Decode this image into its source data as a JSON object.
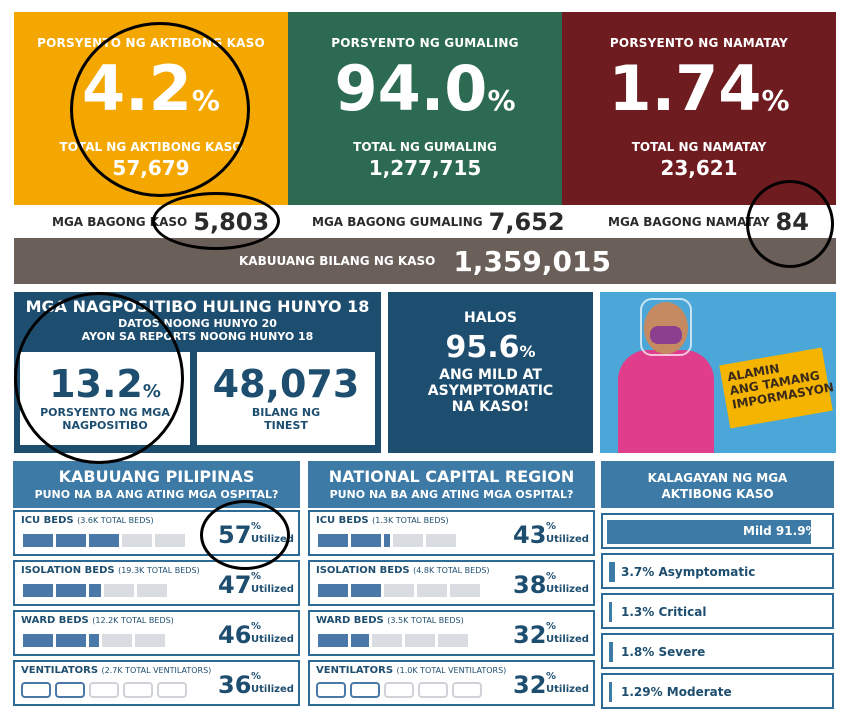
{
  "cards": [
    {
      "title": "PORSYENTO NG AKTIBONG KASO",
      "value": "4.2",
      "pct": "%",
      "sub_label": "TOTAL NG AKTIBONG KASO",
      "sub_value": "57,679",
      "color": "#f4a700"
    },
    {
      "title": "PORSYENTO NG GUMALING",
      "value": "94.0",
      "pct": "%",
      "sub_label": "TOTAL NG GUMALING",
      "sub_value": "1,277,715",
      "color": "#2d6a52"
    },
    {
      "title": "PORSYENTO NG NAMATAY",
      "value": "1.74",
      "pct": "%",
      "sub_label": "TOTAL NG NAMATAY",
      "sub_value": "23,621",
      "color": "#6e1c1f"
    }
  ],
  "new_cases": [
    {
      "label": "MGA BAGONG KASO",
      "value": "5,803"
    },
    {
      "label": "MGA BAGONG GUMALING",
      "value": "7,652"
    },
    {
      "label": "MGA BAGONG NAMATAY",
      "value": "84"
    }
  ],
  "total": {
    "label": "KABUUANG BILANG NG KASO",
    "value": "1,359,015"
  },
  "positivity": {
    "title": "MGA NAGPOSITIBO HULING HUNYO 18",
    "sub1": "DATOS NOONG HUNYO 20",
    "sub2": "AYON SA REPORTS NOONG HUNYO 18",
    "rate": "13.2",
    "pct": "%",
    "rate_label": "PORSYENTO NG MGA NAGPOSITIBO",
    "tested": "48,073",
    "tested_label": "BILANG NG TINEST"
  },
  "mild": {
    "l1": "HALOS",
    "value": "95.6",
    "pct": "%",
    "l2": "ANG MILD AT",
    "l3": "ASYMPTOMATIC",
    "l4": "NA KASO!"
  },
  "promo": {
    "l1": "ALAMIN",
    "l2": "ANG TAMANG",
    "l3": "IMPORMASYON"
  },
  "ph": {
    "title": "KABUUANG PILIPINAS",
    "subtitle": "PUNO NA BA ANG ATING MGA OSPITAL?"
  },
  "ncr": {
    "title": "NATIONAL CAPITAL REGION",
    "subtitle": "PUNO NA BA ANG ATING MGA OSPITAL?"
  },
  "util_word": "Utilized",
  "pct_sign": "%",
  "ph_rows": [
    {
      "name": "ICU BEDS",
      "total": "(3.6K TOTAL BEDS)",
      "pct": "57",
      "filled": 3
    },
    {
      "name": "ISOLATION BEDS",
      "total": "(19.3K TOTAL BEDS)",
      "pct": "47",
      "filled": 2
    },
    {
      "name": "WARD BEDS",
      "total": "(12.2K TOTAL BEDS)",
      "pct": "46",
      "filled": 2
    },
    {
      "name": "VENTILATORS",
      "total": "(2.7K TOTAL VENTILATORS)",
      "pct": "36",
      "filled": 2
    }
  ],
  "ncr_rows": [
    {
      "name": "ICU BEDS",
      "total": "(1.3K TOTAL BEDS)",
      "pct": "43",
      "filled": 2
    },
    {
      "name": "ISOLATION BEDS",
      "total": "(4.8K TOTAL BEDS)",
      "pct": "38",
      "filled": 2
    },
    {
      "name": "WARD BEDS",
      "total": "(3.5K TOTAL BEDS)",
      "pct": "32",
      "filled": 2
    },
    {
      "name": "VENTILATORS",
      "total": "(1.0K TOTAL VENTILATORS)",
      "pct": "32",
      "filled": 2
    }
  ],
  "status": {
    "title1": "KALAGAYAN NG MGA",
    "title2": "AKTIBONG KASO",
    "mild": "Mild 91.9%",
    "items": [
      "3.7% Asymptomatic",
      "1.3% Critical",
      "1.8% Severe",
      "1.29% Moderate"
    ]
  }
}
